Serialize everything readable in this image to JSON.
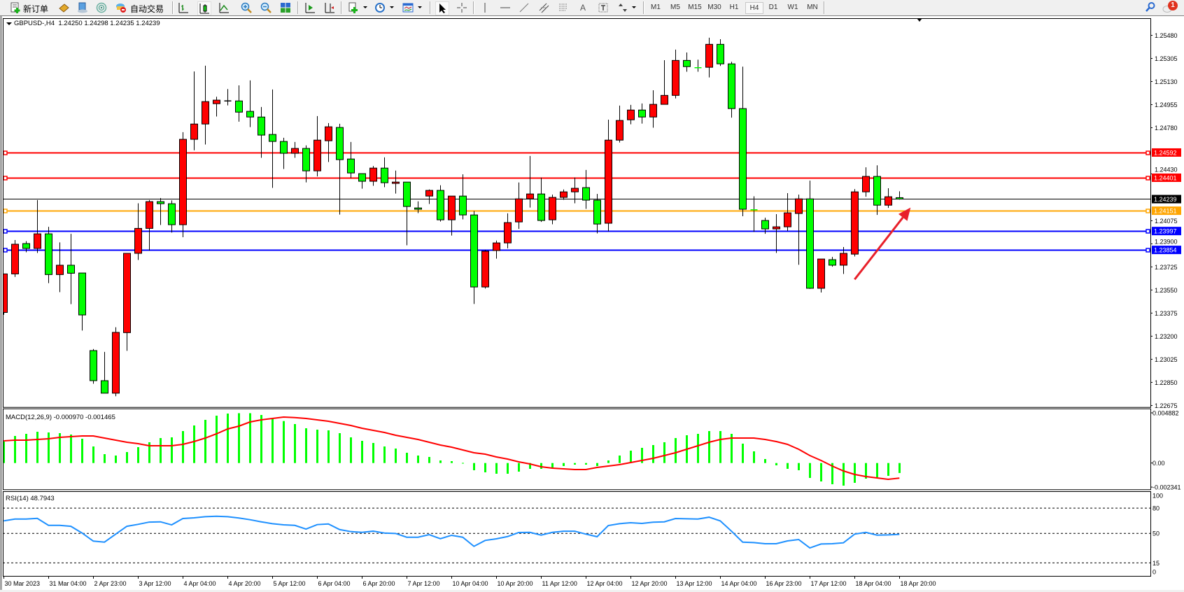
{
  "toolbar": {
    "new_order_label": "新订单",
    "autotrading_label": "自动交易",
    "timeframes": [
      "M1",
      "M5",
      "M15",
      "M30",
      "H1",
      "H4",
      "D1",
      "W1",
      "MN"
    ],
    "active_timeframe": "H4",
    "notification_count": "1",
    "icons": [
      "new-order-icon",
      "market-icon",
      "navigator-icon",
      "signals-icon",
      "autotrading-icon",
      "bar-chart-icon",
      "candlestick-chart-icon",
      "line-chart-icon",
      "zoom-in-icon",
      "zoom-out-icon",
      "tile-windows-icon",
      "chart-shift-icon",
      "auto-scroll-icon",
      "indicators-icon",
      "periods-icon",
      "templates-icon",
      "cursor-icon",
      "crosshair-icon",
      "vertical-line-icon",
      "horizontal-line-icon",
      "trendline-icon",
      "equidistant-channel-icon",
      "fibonacci-icon",
      "text-icon",
      "text-label-icon",
      "arrows-icon",
      "search-icon",
      "notification-icon"
    ]
  },
  "chart_header": "GBPUSD-,H4  1.24250 1.24298 1.24235 1.24239",
  "macd_label": "MACD(12,26,9) -0.000970 -0.001465",
  "rsi_label": "RSI(14) 48.7943",
  "colors": {
    "bull": "#ff0000",
    "bear": "#00ff00",
    "macd_hist": "#00ff00",
    "macd_signal": "#ff0000",
    "rsi": "#1e90ff",
    "arrow": "#e8202a"
  },
  "chart_data": [
    {
      "type": "candlestick",
      "symbol": "GBPUSD-",
      "timeframe": "H4",
      "ylim": [
        1.22663,
        1.2561
      ],
      "y_tick_labels": [
        "1.25480",
        "1.25305",
        "1.25130",
        "1.24955",
        "1.24780",
        "1.24430",
        "1.24075",
        "1.23900",
        "1.23725",
        "1.23550",
        "1.23375",
        "1.23200",
        "1.23025",
        "1.22850",
        "1.22675"
      ],
      "x_tick_labels": [
        "30 Mar 2023",
        "31 Mar 04:00",
        "2 Apr 23:00",
        "3 Apr 12:00",
        "4 Apr 04:00",
        "4 Apr 20:00",
        "5 Apr 12:00",
        "6 Apr 04:00",
        "6 Apr 20:00",
        "7 Apr 12:00",
        "10 Apr 04:00",
        "10 Apr 20:00",
        "11 Apr 12:00",
        "12 Apr 04:00",
        "12 Apr 20:00",
        "13 Apr 12:00",
        "14 Apr 04:00",
        "16 Apr 23:00",
        "17 Apr 12:00",
        "18 Apr 04:00",
        "18 Apr 20:00"
      ],
      "x_tick_every_bars": 4,
      "bull_color": "red",
      "bear_color": "green",
      "current_price": {
        "price": "1.24239",
        "color": "#000000"
      },
      "levels": [
        {
          "price": "1.24592",
          "color": "#ff0000"
        },
        {
          "price": "1.24401",
          "color": "#ff0000"
        },
        {
          "price": "1.24151",
          "color": "#ffa500"
        },
        {
          "price": "1.23997",
          "color": "#0000ff"
        },
        {
          "price": "1.23854",
          "color": "#0000ff"
        }
      ],
      "annotation": {
        "type": "arrow",
        "direction": "up-right",
        "from": {
          "bar": 76,
          "price": 1.2363
        },
        "to": {
          "bar": 81,
          "price": 1.24175
        }
      },
      "ohlc": [
        [
          1.2338,
          1.23672,
          1.23363,
          1.23672
        ],
        [
          1.23672,
          1.23929,
          1.23649,
          1.23897
        ],
        [
          1.23902,
          1.2392,
          1.23836,
          1.23865
        ],
        [
          1.23865,
          1.24232,
          1.23831,
          1.23976
        ],
        [
          1.23976,
          1.24029,
          1.23602,
          1.23667
        ],
        [
          1.23667,
          1.23911,
          1.23534,
          1.23738
        ],
        [
          1.23738,
          1.23976,
          1.23443,
          1.23677
        ],
        [
          1.23679,
          1.23679,
          1.23243,
          1.23361
        ],
        [
          1.23091,
          1.23103,
          1.2284,
          1.22863
        ],
        [
          1.22863,
          1.23081,
          1.22768,
          1.22768
        ],
        [
          1.22768,
          1.23268,
          1.22745,
          1.23229
        ],
        [
          1.23227,
          1.23831,
          1.23089,
          1.23828
        ],
        [
          1.23828,
          1.24207,
          1.23778,
          1.24017
        ],
        [
          1.24017,
          1.24232,
          1.23849,
          1.2422
        ],
        [
          1.2422,
          1.24247,
          1.24043,
          1.24204
        ],
        [
          1.24204,
          1.24229,
          1.23985,
          1.24045
        ],
        [
          1.24045,
          1.24746,
          1.2395,
          1.24692
        ],
        [
          1.24692,
          1.25206,
          1.24609,
          1.24808
        ],
        [
          1.24808,
          1.2525,
          1.24653,
          1.24978
        ],
        [
          1.24962,
          1.25015,
          1.24865,
          1.24989
        ],
        [
          1.24983,
          1.25073,
          1.24949,
          1.24983
        ],
        [
          1.24983,
          1.25101,
          1.24826,
          1.24898
        ],
        [
          1.24904,
          1.25139,
          1.24785,
          1.24861
        ],
        [
          1.24861,
          1.24937,
          1.24552,
          1.24724
        ],
        [
          1.24729,
          1.2507,
          1.24324,
          1.24676
        ],
        [
          1.24676,
          1.24704,
          1.24467,
          1.24586
        ],
        [
          1.24586,
          1.24672,
          1.24552,
          1.24623
        ],
        [
          1.24623,
          1.24646,
          1.24366,
          1.24453
        ],
        [
          1.24453,
          1.24868,
          1.24411,
          1.24686
        ],
        [
          1.24681,
          1.24815,
          1.2452,
          1.24787
        ],
        [
          1.24782,
          1.2481,
          1.24122,
          1.24538
        ],
        [
          1.24543,
          1.24672,
          1.24398,
          1.24437
        ],
        [
          1.24432,
          1.24432,
          1.24318,
          1.24374
        ],
        [
          1.24374,
          1.2449,
          1.2434,
          1.24474
        ],
        [
          1.24474,
          1.24555,
          1.24329,
          1.24363
        ],
        [
          1.24358,
          1.24455,
          1.24281,
          1.24368
        ],
        [
          1.24368,
          1.24368,
          1.23889,
          1.24183
        ],
        [
          1.24172,
          1.24222,
          1.24133,
          1.24162
        ],
        [
          1.24262,
          1.24312,
          1.24202,
          1.24305
        ],
        [
          1.24305,
          1.24344,
          1.24069,
          1.24082
        ],
        [
          1.24082,
          1.24262,
          1.23963,
          1.24262
        ],
        [
          1.24262,
          1.24427,
          1.24085,
          1.24119
        ],
        [
          1.24119,
          1.24149,
          1.23444,
          1.23573
        ],
        [
          1.23573,
          1.23854,
          1.23561,
          1.23844
        ],
        [
          1.23849,
          1.23925,
          1.23788,
          1.23907
        ],
        [
          1.23907,
          1.24131,
          1.23866,
          1.24061
        ],
        [
          1.24066,
          1.24365,
          1.24013,
          1.24241
        ],
        [
          1.24241,
          1.24566,
          1.24175,
          1.24278
        ],
        [
          1.24278,
          1.24402,
          1.24066,
          1.24077
        ],
        [
          1.24082,
          1.24273,
          1.24048,
          1.24252
        ],
        [
          1.24252,
          1.24312,
          1.24234,
          1.24294
        ],
        [
          1.24294,
          1.24403,
          1.24207,
          1.24321
        ],
        [
          1.24326,
          1.2446,
          1.24165,
          1.24231
        ],
        [
          1.24231,
          1.24278,
          1.23979,
          1.2405
        ],
        [
          1.24056,
          1.24841,
          1.23995,
          1.24686
        ],
        [
          1.24686,
          1.24948,
          1.24668,
          1.24835
        ],
        [
          1.2484,
          1.24953,
          1.24806,
          1.24914
        ],
        [
          1.24914,
          1.24964,
          1.24811,
          1.24861
        ],
        [
          1.24861,
          1.25064,
          1.2478,
          1.24957
        ],
        [
          1.24957,
          1.25292,
          1.24957,
          1.25025
        ],
        [
          1.25025,
          1.25372,
          1.25002,
          1.2529
        ],
        [
          1.2529,
          1.2535,
          1.25204,
          1.25243
        ],
        [
          1.25235,
          1.25296,
          1.25204,
          1.25234
        ],
        [
          1.25238,
          1.25462,
          1.25161,
          1.25412
        ],
        [
          1.25412,
          1.25451,
          1.25248,
          1.25264
        ],
        [
          1.25264,
          1.2528,
          1.24856,
          1.24925
        ],
        [
          1.24925,
          1.25243,
          1.24109,
          1.24162
        ],
        [
          1.24158,
          1.2426,
          1.2399,
          1.24153
        ],
        [
          1.24077,
          1.24098,
          1.23976,
          1.24013
        ],
        [
          1.24013,
          1.24125,
          1.23831,
          1.24029
        ],
        [
          1.24029,
          1.24284,
          1.23997,
          1.24135
        ],
        [
          1.2413,
          1.24273,
          1.23741,
          1.24241
        ],
        [
          1.24241,
          1.24379,
          1.23558,
          1.23563
        ],
        [
          1.23563,
          1.23785,
          1.23531,
          1.23785
        ],
        [
          1.2378,
          1.23801,
          1.23727,
          1.23738
        ],
        [
          1.23738,
          1.23876,
          1.23672,
          1.23828
        ],
        [
          1.23822,
          1.24315,
          1.23804,
          1.24294
        ],
        [
          1.24294,
          1.2448,
          1.24257,
          1.24411
        ],
        [
          1.24411,
          1.24495,
          1.24119,
          1.24193
        ],
        [
          1.24193,
          1.24321,
          1.24172,
          1.24257
        ],
        [
          1.2425,
          1.24298,
          1.24235,
          1.24239
        ]
      ]
    },
    {
      "type": "bar+line",
      "indicator": "MACD(12,26,9)",
      "ylim": [
        -0.002561,
        0.005312
      ],
      "y_tick_labels": [
        "0.004882",
        "0.00",
        "-0.002341"
      ],
      "series": [
        {
          "name": "MACD",
          "type": "bar",
          "values": [
            0.002091,
            0.002635,
            0.00284,
            0.003044,
            0.002976,
            0.002908,
            0.002772,
            0.002363,
            0.001614,
            0.000865,
            0.000729,
            0.001069,
            0.001546,
            0.002023,
            0.002431,
            0.002499,
            0.003112,
            0.003657,
            0.004202,
            0.00461,
            0.004815,
            0.00485,
            0.00485,
            0.004678,
            0.004338,
            0.004086,
            0.003793,
            0.003385,
            0.003248,
            0.00318,
            0.002908,
            0.002499,
            0.002159,
            0.001954,
            0.001614,
            0.00141,
            0.001001,
            0.000729,
            0.000592,
            0.000252,
            0.000184,
            1.4e-05,
            -0.000701,
            -0.000906,
            -0.001042,
            -0.001042,
            -0.000838,
            -0.000565,
            -0.000565,
            -0.000497,
            -0.000293,
            -0.000157,
            -0.000157,
            -0.000293,
            0.000252,
            0.000729,
            0.001205,
            0.001478,
            0.00175,
            0.002023,
            0.002431,
            0.002704,
            0.00284,
            0.003112,
            0.003112,
            0.00284,
            0.001886,
            0.001137,
            0.000388,
            -0.000225,
            -0.000565,
            -0.000701,
            -0.001451,
            -0.001791,
            -0.002063,
            -0.0022,
            -0.001927,
            -0.001519,
            -0.001382,
            -0.001246,
            -0.00097
          ]
        },
        {
          "name": "Signal",
          "type": "line",
          "values": [
            0.002159,
            0.002227,
            0.002227,
            0.002295,
            0.002363,
            0.002499,
            0.002567,
            0.002635,
            0.002635,
            0.002431,
            0.002227,
            0.002023,
            0.001886,
            0.001682,
            0.001682,
            0.001682,
            0.001818,
            0.002091,
            0.002431,
            0.00284,
            0.003316,
            0.003589,
            0.003997,
            0.004202,
            0.004338,
            0.004474,
            0.004427,
            0.004338,
            0.004202,
            0.004066,
            0.003861,
            0.003657,
            0.003385,
            0.00318,
            0.002976,
            0.002704,
            0.002499,
            0.002295,
            0.002023,
            0.00175,
            0.001546,
            0.001273,
            0.001001,
            0.000865,
            0.000592,
            0.000388,
            0.000116,
            -8.9e-05,
            -0.000361,
            -0.000497,
            -0.000565,
            -0.000633,
            -0.000633,
            -0.000429,
            -0.000293,
            -0.000157,
            4.8e-05,
            0.000252,
            0.000456,
            0.000729,
            0.001001,
            0.001342,
            0.001682,
            0.002023,
            0.002295,
            0.002431,
            0.002431,
            0.002431,
            0.002295,
            0.002091,
            0.001818,
            0.001342,
            0.000729,
            0.000252,
            -0.000293,
            -0.00077,
            -0.00111,
            -0.001314,
            -0.001451,
            -0.001587,
            -0.001465
          ]
        }
      ]
    },
    {
      "type": "line",
      "indicator": "RSI(14)",
      "ylim": [
        0,
        100
      ],
      "y_tick_labels": [
        "100",
        "80",
        "50",
        "15",
        "0"
      ],
      "levels": [
        80,
        50,
        15
      ],
      "values": [
        64.8,
        67.0,
        67.0,
        67.8,
        59.5,
        59.5,
        58.4,
        50.4,
        40.8,
        39.6,
        49.1,
        58.4,
        60.7,
        63.4,
        63.7,
        60.1,
        67.6,
        68.4,
        69.8,
        70.3,
        69.8,
        68.2,
        66.2,
        63.7,
        61.5,
        60.1,
        59.5,
        55.1,
        60.4,
        61.2,
        54.5,
        52.1,
        51.2,
        52.6,
        50.4,
        49.9,
        45.4,
        45.4,
        48.5,
        43.7,
        47.7,
        45.4,
        34.6,
        41.6,
        43.5,
        46.2,
        51.0,
        51.2,
        47.9,
        51.2,
        52.6,
        52.6,
        49.1,
        46.0,
        59.3,
        61.5,
        62.6,
        61.8,
        63.2,
        63.7,
        67.6,
        67.3,
        67.0,
        69.2,
        64.8,
        52.6,
        39.6,
        39.1,
        37.7,
        37.7,
        41.0,
        42.7,
        32.7,
        37.4,
        37.7,
        38.8,
        49.1,
        51.2,
        47.9,
        48.2,
        48.7943
      ]
    }
  ]
}
